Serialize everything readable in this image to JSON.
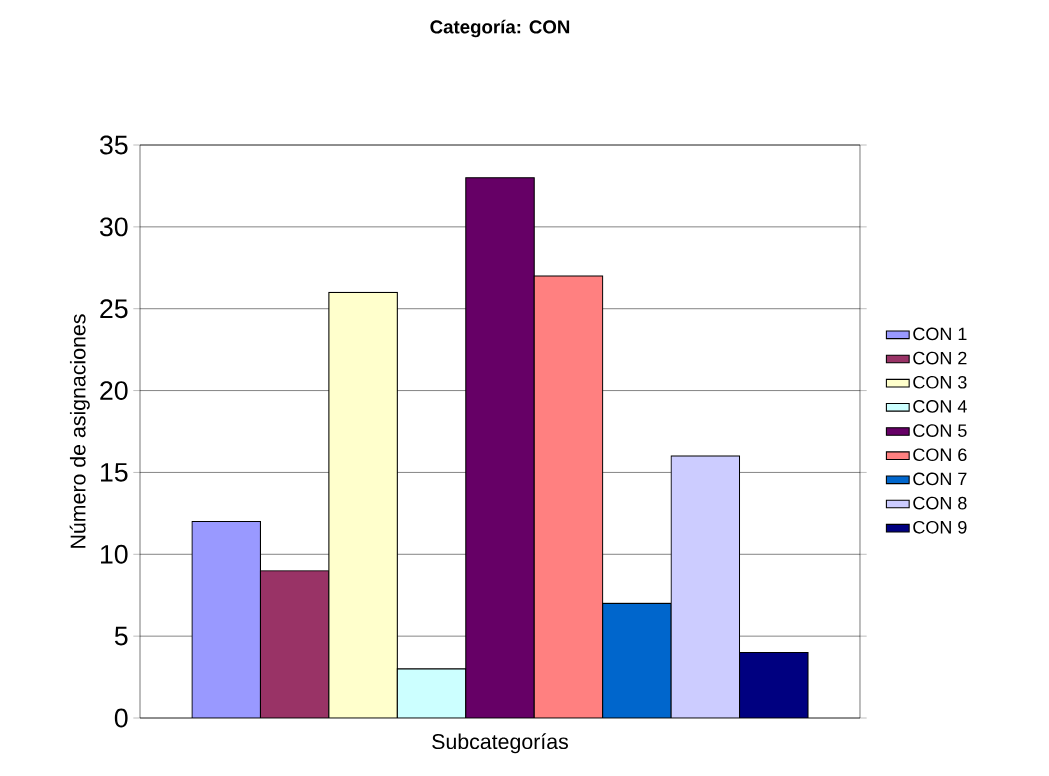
{
  "chart_data": {
    "type": "bar",
    "title": "Categoría: CON",
    "xlabel": "Subcategorías",
    "ylabel": "Número de asignaciones",
    "categories": [
      null
    ],
    "series": [
      {
        "name": "CON 1",
        "color": "#9999ff",
        "values": [
          12
        ]
      },
      {
        "name": "CON 2",
        "color": "#993366",
        "values": [
          9
        ]
      },
      {
        "name": "CON 3",
        "color": "#ffffcc",
        "values": [
          26
        ]
      },
      {
        "name": "CON 4",
        "color": "#ccffff",
        "values": [
          3
        ]
      },
      {
        "name": "CON 5",
        "color": "#660066",
        "values": [
          33
        ]
      },
      {
        "name": "CON 6",
        "color": "#ff8080",
        "values": [
          27
        ]
      },
      {
        "name": "CON 7",
        "color": "#0066cc",
        "values": [
          7
        ]
      },
      {
        "name": "CON 8",
        "color": "#ccccff",
        "values": [
          16
        ]
      },
      {
        "name": "CON 9",
        "color": "#000080",
        "values": [
          4
        ]
      }
    ],
    "ylim": [
      0,
      35
    ],
    "yticks": [
      0,
      5,
      10,
      15,
      20,
      25,
      30,
      35
    ],
    "grid": "y",
    "legend": "right"
  }
}
